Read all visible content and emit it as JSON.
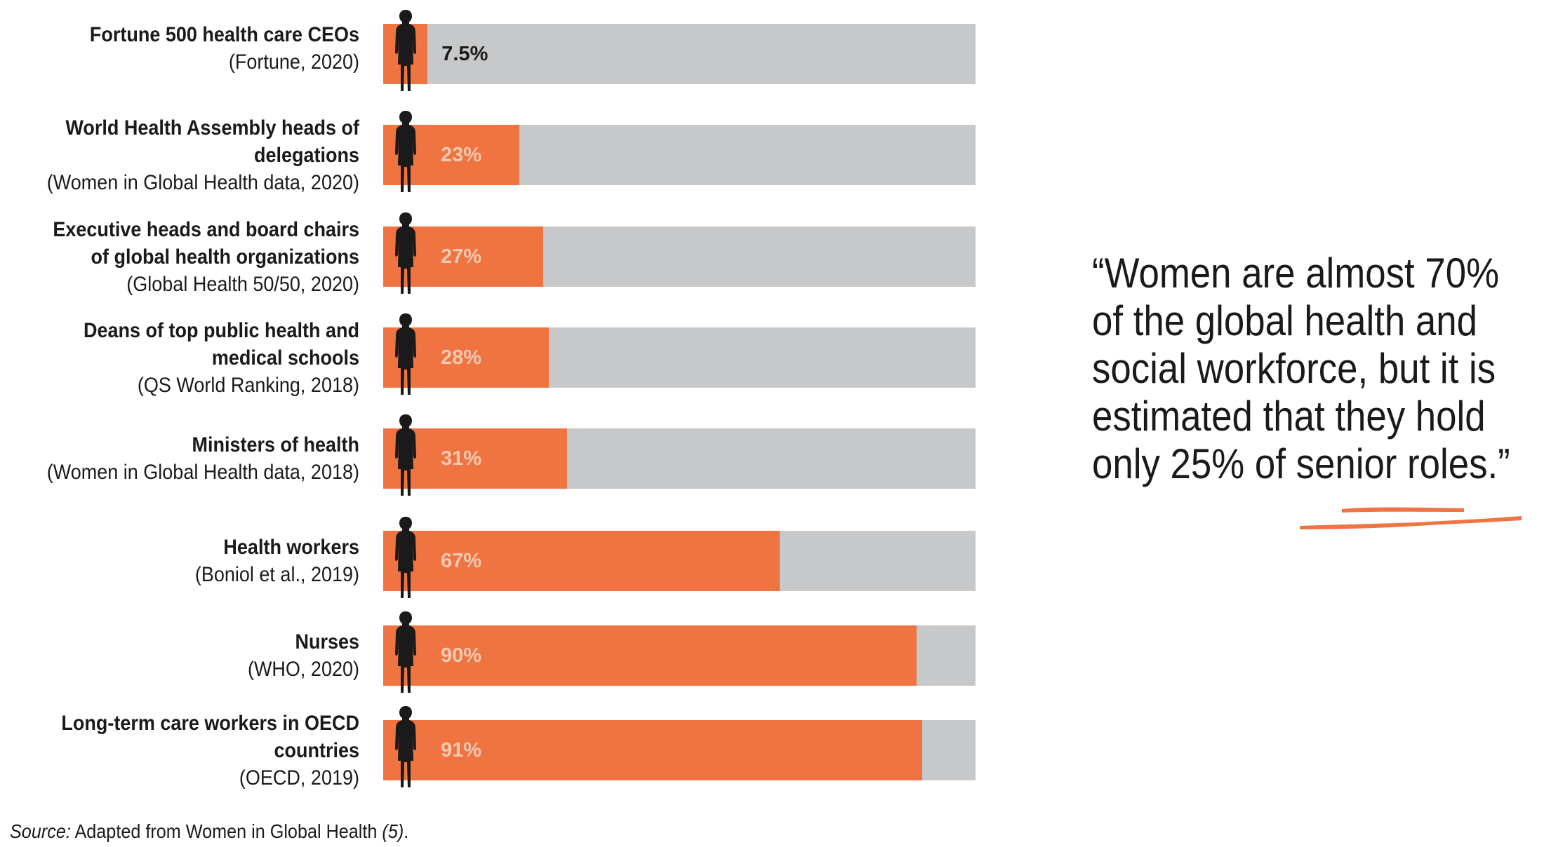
{
  "chart_data": {
    "type": "bar",
    "orientation": "horizontal",
    "unit": "%",
    "xlim": [
      0,
      100
    ],
    "categories": [
      {
        "label": "Fortune 500 health care CEOs",
        "source": "(Fortune, 2020)",
        "value": 7.5,
        "display": "7.5%"
      },
      {
        "label": "World Health Assembly heads of delegations",
        "source": "(Women in Global Health data, 2020)",
        "value": 23,
        "display": "23%"
      },
      {
        "label": "Executive heads and board chairs of global health organizations",
        "source": "(Global Health 50/50, 2020)",
        "value": 27,
        "display": "27%"
      },
      {
        "label": "Deans of top public health and medical schools",
        "source": "(QS World Ranking, 2018)",
        "value": 28,
        "display": "28%"
      },
      {
        "label": "Ministers of health",
        "source": "(Women in Global Health data, 2018)",
        "value": 31,
        "display": "31%"
      },
      {
        "label": "Health workers",
        "source": "(Boniol et al., 2019)",
        "value": 67,
        "display": "67%"
      },
      {
        "label": "Nurses",
        "source": "(WHO, 2020)",
        "value": 90,
        "display": "90%"
      },
      {
        "label": "Long-term care workers in OECD countries",
        "source": "(OECD, 2019)",
        "value": 91,
        "display": "91%"
      }
    ],
    "colors": {
      "fill": "#ef7441",
      "track": "#c7c8ca",
      "figure": "#1a1a1a",
      "label_light": "#f6c9b3",
      "label_dark": "#1a1a1a"
    }
  },
  "quote": {
    "lines": [
      "“Women are almost 70%",
      "of the global health and",
      "social workforce, but it is",
      "estimated that they hold",
      "only 25% of senior roles.”"
    ]
  },
  "footer": {
    "source_label": "Source:",
    "source_text": " Adapted from Women in Global Health ",
    "ref": "(5)",
    "end": "."
  }
}
